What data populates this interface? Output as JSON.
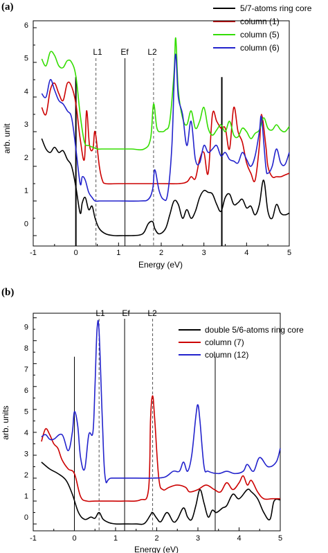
{
  "chart_data": [
    {
      "type": "line",
      "panel_label": "(a)",
      "title": "",
      "xlabel": "Energy (eV)",
      "ylabel": "arb. unit",
      "xlim": [
        -1,
        5
      ],
      "ylim": [
        -0.3,
        6.2
      ],
      "xticks": [
        "-1",
        "0",
        "1",
        "2",
        "3",
        "4",
        "5"
      ],
      "yticks": [
        "0",
        "1",
        "2",
        "3",
        "4",
        "5",
        "6"
      ],
      "legend_position": "top-right",
      "vertical_markers": [
        {
          "x": 0.0,
          "style": "solid-thick",
          "label": ""
        },
        {
          "x": 0.47,
          "style": "dashed",
          "label": "L1"
        },
        {
          "x": 1.15,
          "style": "solid",
          "label": "Ef"
        },
        {
          "x": 1.82,
          "style": "dashed",
          "label": "L2"
        },
        {
          "x": 3.42,
          "style": "solid-thick",
          "label": ""
        }
      ],
      "series": [
        {
          "name": "5/7-atoms ring core",
          "color": "#000000",
          "x": [
            -0.8,
            -0.7,
            -0.6,
            -0.5,
            -0.4,
            -0.3,
            -0.2,
            -0.1,
            0.0,
            0.1,
            0.15,
            0.22,
            0.3,
            0.38,
            0.45,
            0.55,
            0.7,
            0.9,
            1.1,
            1.3,
            1.5,
            1.6,
            1.7,
            1.8,
            1.85,
            1.95,
            2.1,
            2.2,
            2.3,
            2.4,
            2.5,
            2.6,
            2.7,
            2.8,
            2.9,
            3.0,
            3.1,
            3.2,
            3.3,
            3.4,
            3.5,
            3.6,
            3.7,
            3.8,
            3.9,
            4.0,
            4.1,
            4.2,
            4.3,
            4.4,
            4.5,
            4.6,
            4.7,
            4.8,
            4.9,
            5.0
          ],
          "y": [
            2.8,
            2.5,
            2.4,
            2.55,
            2.4,
            2.45,
            2.2,
            2.0,
            1.4,
            0.65,
            0.95,
            1.1,
            0.75,
            0.85,
            0.5,
            0.2,
            0.05,
            0.0,
            0.0,
            0.0,
            0.02,
            0.1,
            0.35,
            0.4,
            0.2,
            0.05,
            0.2,
            0.6,
            1.0,
            0.9,
            0.5,
            0.75,
            0.5,
            0.7,
            1.1,
            1.3,
            1.25,
            1.2,
            0.9,
            0.7,
            1.1,
            1.2,
            0.9,
            0.95,
            1.05,
            0.8,
            0.85,
            0.6,
            0.9,
            1.6,
            0.7,
            0.5,
            0.9,
            0.65,
            0.6,
            0.65
          ]
        },
        {
          "name": "column (1)",
          "color": "#cc0000",
          "x": [
            -0.8,
            -0.7,
            -0.6,
            -0.5,
            -0.4,
            -0.3,
            -0.2,
            -0.1,
            0.0,
            0.1,
            0.2,
            0.25,
            0.32,
            0.4,
            0.45,
            0.55,
            0.62,
            0.7,
            1.0,
            1.5,
            2.0,
            2.4,
            2.6,
            2.7,
            2.8,
            2.9,
            3.0,
            3.1,
            3.2,
            3.3,
            3.4,
            3.5,
            3.6,
            3.7,
            3.8,
            3.9,
            4.0,
            4.1,
            4.2,
            4.3,
            4.35,
            4.45,
            4.5,
            4.6,
            4.7,
            4.8,
            4.9,
            5.0
          ],
          "y": [
            3.7,
            3.5,
            4.2,
            4.4,
            4.1,
            3.9,
            4.4,
            4.3,
            3.8,
            2.8,
            2.2,
            3.6,
            2.6,
            2.5,
            3.0,
            2.0,
            1.6,
            1.5,
            1.5,
            1.5,
            1.5,
            1.5,
            1.55,
            1.7,
            1.65,
            2.2,
            2.4,
            1.8,
            3.5,
            3.3,
            3.1,
            3.1,
            2.5,
            3.7,
            3.0,
            2.7,
            2.1,
            1.8,
            1.6,
            2.6,
            3.5,
            2.6,
            2.0,
            1.7,
            1.7,
            1.7,
            1.75,
            1.8
          ]
        },
        {
          "name": "column (5)",
          "color": "#33dd00",
          "x": [
            -0.8,
            -0.7,
            -0.6,
            -0.5,
            -0.4,
            -0.3,
            -0.2,
            -0.1,
            0.0,
            0.1,
            0.2,
            0.3,
            0.4,
            0.5,
            0.6,
            0.8,
            1.0,
            1.3,
            1.6,
            1.75,
            1.82,
            1.9,
            2.0,
            2.1,
            2.2,
            2.3,
            2.34,
            2.4,
            2.5,
            2.6,
            2.7,
            2.8,
            2.9,
            3.0,
            3.1,
            3.2,
            3.3,
            3.4,
            3.5,
            3.6,
            3.7,
            3.8,
            3.9,
            4.0,
            4.1,
            4.2,
            4.3,
            4.4,
            4.5,
            4.6,
            4.7,
            4.8,
            4.9,
            5.0
          ],
          "y": [
            5.1,
            4.9,
            5.3,
            5.2,
            4.9,
            4.85,
            5.05,
            5.0,
            4.6,
            3.5,
            2.7,
            2.6,
            2.55,
            2.5,
            2.5,
            2.5,
            2.5,
            2.5,
            2.5,
            2.8,
            3.8,
            3.1,
            3.0,
            3.05,
            3.3,
            4.7,
            5.7,
            4.2,
            3.4,
            3.2,
            3.6,
            3.1,
            3.3,
            3.7,
            3.1,
            2.9,
            3.05,
            3.2,
            3.0,
            3.3,
            2.9,
            2.85,
            3.1,
            3.0,
            2.8,
            2.95,
            3.05,
            3.4,
            3.1,
            3.05,
            3.2,
            3.05,
            3.0,
            3.15
          ]
        },
        {
          "name": "column (6)",
          "color": "#2222cc",
          "x": [
            -0.8,
            -0.7,
            -0.6,
            -0.5,
            -0.4,
            -0.3,
            -0.2,
            -0.1,
            0.0,
            0.1,
            0.15,
            0.22,
            0.3,
            0.38,
            0.45,
            0.55,
            0.62,
            0.7,
            1.0,
            1.5,
            1.7,
            1.8,
            1.85,
            1.95,
            2.05,
            2.15,
            2.25,
            2.33,
            2.4,
            2.5,
            2.6,
            2.7,
            2.8,
            2.9,
            3.0,
            3.1,
            3.2,
            3.3,
            3.4,
            3.5,
            3.6,
            3.7,
            3.8,
            3.9,
            4.0,
            4.1,
            4.2,
            4.3,
            4.35,
            4.45,
            4.5,
            4.6,
            4.7,
            4.8,
            4.9,
            5.0
          ],
          "y": [
            4.1,
            4.0,
            4.5,
            4.2,
            3.9,
            3.8,
            3.6,
            3.4,
            2.5,
            1.5,
            1.7,
            1.6,
            1.25,
            1.1,
            1.0,
            1.0,
            1.0,
            1.0,
            1.0,
            1.0,
            1.05,
            1.35,
            1.9,
            1.3,
            1.05,
            1.2,
            2.6,
            5.2,
            4.0,
            3.5,
            2.6,
            3.3,
            2.2,
            2.1,
            2.6,
            2.4,
            2.5,
            2.6,
            2.3,
            2.4,
            2.2,
            2.15,
            2.1,
            2.4,
            2.2,
            2.0,
            2.3,
            3.0,
            3.4,
            2.0,
            1.8,
            2.0,
            2.5,
            2.1,
            2.05,
            2.4
          ]
        }
      ]
    },
    {
      "type": "line",
      "panel_label": "(b)",
      "title": "",
      "xlabel": "Energy (eV)",
      "ylabel": "arb. units",
      "xlim": [
        -1,
        5
      ],
      "ylim": [
        -0.3,
        9.2
      ],
      "xticks": [
        "-1",
        "0",
        "1",
        "2",
        "3",
        "4",
        "5"
      ],
      "yticks": [
        "0",
        "1",
        "2",
        "3",
        "4",
        "5",
        "6",
        "7",
        "8",
        "9"
      ],
      "legend_position": "top-right",
      "vertical_markers": [
        {
          "x": 0.0,
          "style": "solid",
          "label": ""
        },
        {
          "x": 0.6,
          "style": "dashed",
          "label": "L1"
        },
        {
          "x": 1.22,
          "style": "solid",
          "label": "Ef"
        },
        {
          "x": 1.9,
          "style": "dashed",
          "label": "L2"
        },
        {
          "x": 3.42,
          "style": "solid",
          "label": ""
        }
      ],
      "series": [
        {
          "name": "double 5/6-atoms ring core",
          "color": "#000000",
          "x": [
            -0.8,
            -0.6,
            -0.4,
            -0.2,
            -0.05,
            0.1,
            0.25,
            0.4,
            0.5,
            0.6,
            0.7,
            0.85,
            1.0,
            1.2,
            1.5,
            1.7,
            1.85,
            1.9,
            2.0,
            2.1,
            2.25,
            2.4,
            2.5,
            2.65,
            2.75,
            2.85,
            2.95,
            3.05,
            3.15,
            3.25,
            3.35,
            3.45,
            3.6,
            3.7,
            3.85,
            4.0,
            4.2,
            4.3,
            4.45,
            4.6,
            4.75,
            4.85,
            5.0
          ],
          "y": [
            2.7,
            2.4,
            2.2,
            1.9,
            1.3,
            0.5,
            0.2,
            0.3,
            0.25,
            0.5,
            0.2,
            0.05,
            0.0,
            0.0,
            0.0,
            0.02,
            0.4,
            0.5,
            0.25,
            0.1,
            0.5,
            0.1,
            0.2,
            0.7,
            0.3,
            0.2,
            0.8,
            1.5,
            0.9,
            0.3,
            0.6,
            0.5,
            0.7,
            0.8,
            1.3,
            1.1,
            1.5,
            1.4,
            1.1,
            0.5,
            0.2,
            1.0,
            1.05
          ]
        },
        {
          "name": "column (7)",
          "color": "#cc0000",
          "x": [
            -0.8,
            -0.7,
            -0.6,
            -0.5,
            -0.4,
            -0.3,
            -0.15,
            0.0,
            0.15,
            0.3,
            0.5,
            0.8,
            1.2,
            1.6,
            1.8,
            1.85,
            1.9,
            1.95,
            2.05,
            2.15,
            2.3,
            2.5,
            2.7,
            2.8,
            3.0,
            3.2,
            3.4,
            3.55,
            3.7,
            3.85,
            4.0,
            4.1,
            4.2,
            4.3,
            4.45,
            4.6,
            4.8,
            5.0
          ],
          "y": [
            3.6,
            4.15,
            3.9,
            3.5,
            3.3,
            2.8,
            2.4,
            2.2,
            1.2,
            1.0,
            1.0,
            1.0,
            1.0,
            1.05,
            1.5,
            4.6,
            5.6,
            4.6,
            2.0,
            1.5,
            1.6,
            1.7,
            1.6,
            1.4,
            1.5,
            1.7,
            1.5,
            1.4,
            1.8,
            1.5,
            1.8,
            2.1,
            1.7,
            1.9,
            1.4,
            1.1,
            1.1,
            1.1
          ]
        },
        {
          "name": "column (12)",
          "color": "#2222cc",
          "x": [
            -0.8,
            -0.7,
            -0.6,
            -0.5,
            -0.3,
            -0.15,
            -0.05,
            0.0,
            0.08,
            0.15,
            0.25,
            0.35,
            0.45,
            0.5,
            0.55,
            0.6,
            0.68,
            0.75,
            0.9,
            1.5,
            1.9,
            2.2,
            2.4,
            2.55,
            2.65,
            2.75,
            2.85,
            2.95,
            3.0,
            3.05,
            3.15,
            3.25,
            3.5,
            3.7,
            3.9,
            4.1,
            4.2,
            4.35,
            4.5,
            4.7,
            4.9,
            5.0
          ],
          "y": [
            3.8,
            3.9,
            3.7,
            3.7,
            3.9,
            3.2,
            4.0,
            4.9,
            4.3,
            2.9,
            2.4,
            3.9,
            4.0,
            6.0,
            8.5,
            8.4,
            4.5,
            2.0,
            2.0,
            2.0,
            2.0,
            2.05,
            2.3,
            2.3,
            2.7,
            2.3,
            3.0,
            4.7,
            5.2,
            4.5,
            2.5,
            2.3,
            2.2,
            2.3,
            2.2,
            2.3,
            2.6,
            2.3,
            2.9,
            2.5,
            2.7,
            3.3
          ]
        }
      ]
    }
  ]
}
